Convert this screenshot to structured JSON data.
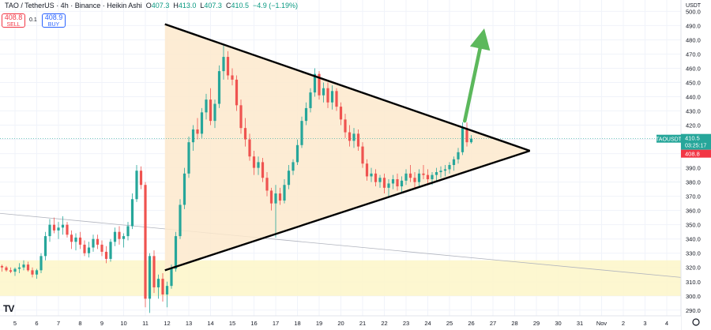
{
  "header": {
    "symbol": "TAO / TetherUS · 4h · Binance · Heikin Ashi",
    "o_label": "O",
    "o": "407.3",
    "h_label": "H",
    "h": "413.0",
    "l_label": "L",
    "l": "407.3",
    "c_label": "C",
    "c": "410.5",
    "change": "−4.9 (−1.19%)"
  },
  "trade": {
    "sell_price": "408.8",
    "sell_label": "SELL",
    "spread": "0.1",
    "buy_price": "408.9",
    "buy_label": "BUY"
  },
  "axis_currency": "USDT",
  "price_tag": {
    "ticker": "TAOUSDT",
    "price": "410.5",
    "countdown": "03:25:17",
    "bid": "408.8"
  },
  "colors": {
    "up": "#26a69a",
    "down": "#ef5350",
    "triangle_fill": "#fde9cc",
    "zone_fill": "#fdf6c8",
    "arrow": "#5cb85c"
  },
  "chart_data": {
    "type": "candlestick",
    "y_ticks": [
      290,
      300,
      310,
      320,
      330,
      340,
      350,
      360,
      370,
      380,
      390,
      400,
      410,
      420,
      430,
      440,
      450,
      460,
      470,
      480,
      490,
      500
    ],
    "y_tick_labels": [
      "290.0",
      "300.0",
      "310.0",
      "320.0",
      "330.0",
      "340.0",
      "350.0",
      "360.0",
      "370.0",
      "380.0",
      "390.0",
      "400.0",
      "410.0",
      "420.0",
      "430.0",
      "440.0",
      "450.0",
      "460.0",
      "470.0",
      "480.0",
      "490.0",
      "500.0"
    ],
    "ylim": [
      286,
      508
    ],
    "x_labels": [
      "5",
      "6",
      "7",
      "8",
      "9",
      "10",
      "11",
      "12",
      "13",
      "14",
      "15",
      "16",
      "17",
      "18",
      "19",
      "20",
      "21",
      "22",
      "23",
      "24",
      "25",
      "26",
      "27",
      "28",
      "29",
      "30",
      "31",
      "Nov",
      "2",
      "3",
      "4"
    ],
    "x_days": [
      5,
      6,
      7,
      8,
      9,
      10,
      11,
      12,
      13,
      14,
      15,
      16,
      17,
      18,
      19,
      20,
      21,
      22,
      23,
      24,
      25,
      26,
      27,
      28,
      29,
      30,
      31,
      32,
      33,
      34,
      35
    ],
    "candles": [
      [
        4.4,
        321,
        322,
        317,
        320
      ],
      [
        4.6,
        320,
        321,
        317,
        318
      ],
      [
        4.8,
        318,
        320,
        316,
        317
      ],
      [
        5.0,
        317,
        320,
        314,
        319
      ],
      [
        5.2,
        319,
        323,
        316,
        320
      ],
      [
        5.4,
        320,
        325,
        318,
        322
      ],
      [
        5.6,
        322,
        324,
        317,
        318
      ],
      [
        5.8,
        318,
        320,
        313,
        315
      ],
      [
        6.0,
        315,
        319,
        312,
        318
      ],
      [
        6.2,
        318,
        330,
        316,
        328
      ],
      [
        6.4,
        328,
        345,
        325,
        342
      ],
      [
        6.6,
        342,
        354,
        338,
        350
      ],
      [
        6.8,
        350,
        355,
        344,
        346
      ],
      [
        7.0,
        346,
        352,
        340,
        348
      ],
      [
        7.2,
        348,
        356,
        343,
        350
      ],
      [
        7.4,
        350,
        352,
        341,
        343
      ],
      [
        7.6,
        343,
        346,
        333,
        338
      ],
      [
        7.8,
        338,
        344,
        332,
        341
      ],
      [
        8.0,
        341,
        345,
        333,
        336
      ],
      [
        8.2,
        336,
        339,
        328,
        330
      ],
      [
        8.4,
        330,
        338,
        327,
        334
      ],
      [
        8.6,
        334,
        343,
        331,
        340
      ],
      [
        8.8,
        340,
        343,
        333,
        336
      ],
      [
        9.0,
        336,
        339,
        328,
        331
      ],
      [
        9.2,
        331,
        335,
        323,
        326
      ],
      [
        9.4,
        326,
        340,
        324,
        338
      ],
      [
        9.6,
        338,
        348,
        335,
        345
      ],
      [
        9.8,
        345,
        349,
        336,
        340
      ],
      [
        10.0,
        340,
        344,
        334,
        342
      ],
      [
        10.2,
        342,
        352,
        339,
        349
      ],
      [
        10.4,
        349,
        372,
        347,
        368
      ],
      [
        10.6,
        368,
        392,
        366,
        388
      ],
      [
        10.8,
        388,
        391,
        375,
        378
      ],
      [
        11.0,
        378,
        380,
        292,
        298
      ],
      [
        11.2,
        298,
        330,
        288,
        328
      ],
      [
        11.4,
        328,
        332,
        302,
        306
      ],
      [
        11.6,
        306,
        315,
        298,
        312
      ],
      [
        11.8,
        312,
        316,
        296,
        301
      ],
      [
        12.0,
        301,
        310,
        292,
        307
      ],
      [
        12.2,
        307,
        322,
        305,
        319
      ],
      [
        12.4,
        319,
        345,
        317,
        342
      ],
      [
        12.6,
        342,
        368,
        340,
        364
      ],
      [
        12.8,
        364,
        390,
        361,
        386
      ],
      [
        13.0,
        386,
        412,
        383,
        408
      ],
      [
        13.2,
        408,
        420,
        402,
        417
      ],
      [
        13.4,
        417,
        425,
        410,
        414
      ],
      [
        13.6,
        414,
        432,
        411,
        429
      ],
      [
        13.8,
        429,
        442,
        424,
        438
      ],
      [
        14.0,
        438,
        446,
        420,
        423
      ],
      [
        14.2,
        423,
        438,
        418,
        435
      ],
      [
        14.4,
        435,
        462,
        432,
        458
      ],
      [
        14.6,
        458,
        476,
        452,
        468
      ],
      [
        14.8,
        468,
        472,
        452,
        455
      ],
      [
        15.0,
        455,
        460,
        448,
        452
      ],
      [
        15.2,
        452,
        455,
        430,
        434
      ],
      [
        15.4,
        434,
        438,
        414,
        418
      ],
      [
        15.6,
        418,
        425,
        405,
        410
      ],
      [
        15.8,
        410,
        414,
        395,
        398
      ],
      [
        16.0,
        398,
        402,
        385,
        390
      ],
      [
        16.2,
        390,
        398,
        385,
        394
      ],
      [
        16.4,
        394,
        397,
        380,
        383
      ],
      [
        16.6,
        383,
        387,
        370,
        374
      ],
      [
        16.8,
        374,
        376,
        360,
        365
      ],
      [
        17.0,
        365,
        378,
        341,
        372
      ],
      [
        17.2,
        372,
        376,
        364,
        367
      ],
      [
        17.4,
        367,
        382,
        365,
        378
      ],
      [
        17.6,
        378,
        392,
        375,
        388
      ],
      [
        17.8,
        388,
        396,
        385,
        394
      ],
      [
        18.0,
        394,
        410,
        392,
        406
      ],
      [
        18.2,
        406,
        426,
        404,
        423
      ],
      [
        18.4,
        423,
        436,
        420,
        432
      ],
      [
        18.6,
        432,
        446,
        429,
        443
      ],
      [
        18.8,
        443,
        460,
        440,
        456
      ],
      [
        19.0,
        456,
        458,
        438,
        441
      ],
      [
        19.2,
        441,
        450,
        436,
        446
      ],
      [
        19.4,
        446,
        450,
        432,
        436
      ],
      [
        19.6,
        436,
        448,
        431,
        444
      ],
      [
        19.8,
        444,
        446,
        430,
        433
      ],
      [
        20.0,
        433,
        436,
        420,
        424
      ],
      [
        20.2,
        424,
        428,
        411,
        415
      ],
      [
        20.4,
        415,
        420,
        405,
        409
      ],
      [
        20.6,
        409,
        418,
        404,
        414
      ],
      [
        20.8,
        414,
        417,
        402,
        405
      ],
      [
        21.0,
        405,
        408,
        390,
        393
      ],
      [
        21.2,
        393,
        396,
        381,
        384
      ],
      [
        21.4,
        384,
        390,
        380,
        386
      ],
      [
        21.6,
        386,
        389,
        377,
        380
      ],
      [
        21.8,
        380,
        385,
        376,
        383
      ],
      [
        22.0,
        383,
        386,
        372,
        376
      ],
      [
        22.2,
        376,
        382,
        370,
        379
      ],
      [
        22.4,
        379,
        385,
        375,
        382
      ],
      [
        22.6,
        382,
        386,
        374,
        377
      ],
      [
        22.8,
        377,
        384,
        373,
        381
      ],
      [
        23.0,
        381,
        389,
        378,
        386
      ],
      [
        23.2,
        386,
        392,
        380,
        383
      ],
      [
        23.4,
        383,
        387,
        376,
        380
      ],
      [
        23.6,
        380,
        389,
        377,
        386
      ],
      [
        23.8,
        386,
        392,
        382,
        385
      ],
      [
        24.0,
        385,
        389,
        379,
        382
      ],
      [
        24.2,
        382,
        387,
        378,
        385
      ],
      [
        24.4,
        385,
        390,
        381,
        387
      ],
      [
        24.6,
        387,
        391,
        383,
        388
      ],
      [
        24.8,
        388,
        392,
        384,
        389
      ],
      [
        25.0,
        389,
        394,
        386,
        392
      ],
      [
        25.2,
        392,
        398,
        388,
        396
      ],
      [
        25.4,
        396,
        404,
        393,
        401
      ],
      [
        25.6,
        401,
        422,
        399,
        418
      ],
      [
        25.8,
        418,
        422,
        405,
        408
      ],
      [
        26.0,
        408,
        413,
        407,
        410.5
      ]
    ],
    "triangle": {
      "apex": [
        28.7,
        402
      ],
      "upper_start": [
        11.9,
        491
      ],
      "lower_start": [
        11.9,
        318
      ]
    },
    "arrow": {
      "from": [
        25.7,
        423
      ],
      "to": [
        26.6,
        488
      ]
    },
    "support_zone": [
      300,
      325
    ],
    "diagonal_line": [
      [
        0,
        358
      ],
      [
        31.6,
        313
      ]
    ]
  }
}
